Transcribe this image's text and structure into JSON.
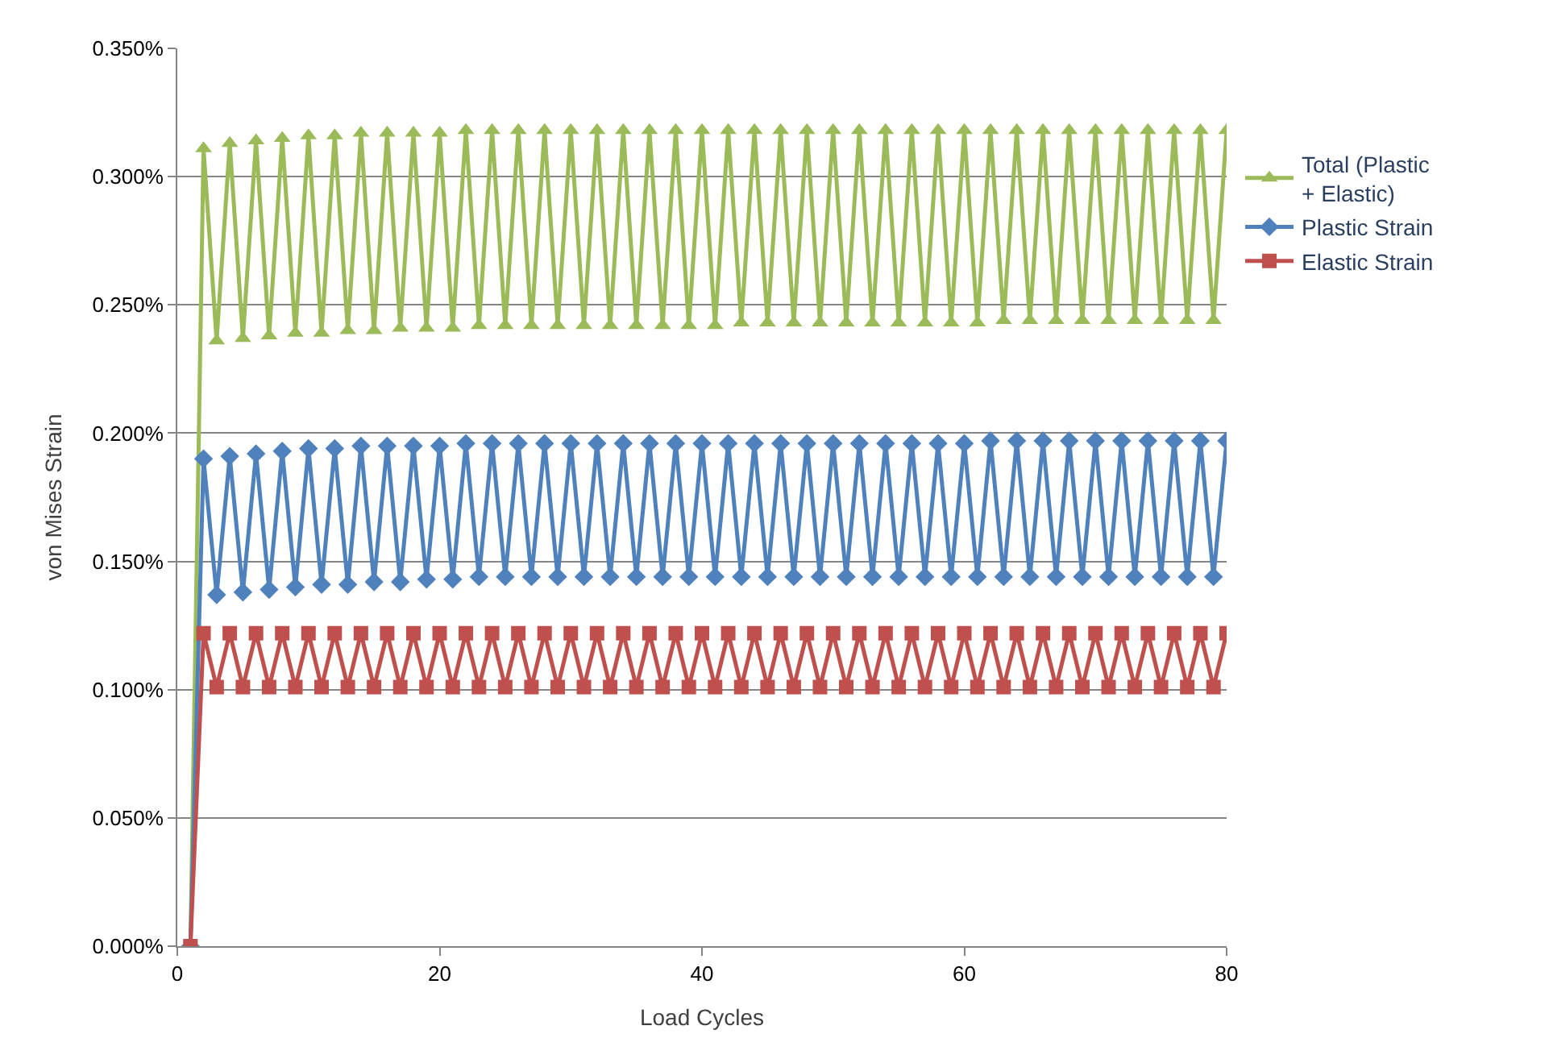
{
  "chart_data": {
    "type": "line",
    "xlabel": "Load Cycles",
    "ylabel": "von Mises Strain",
    "x": [
      1,
      2,
      3,
      4,
      5,
      6,
      7,
      8,
      9,
      10,
      11,
      12,
      13,
      14,
      15,
      16,
      17,
      18,
      19,
      20,
      21,
      22,
      23,
      24,
      25,
      26,
      27,
      28,
      29,
      30,
      31,
      32,
      33,
      34,
      35,
      36,
      37,
      38,
      39,
      40,
      41,
      42,
      43,
      44,
      45,
      46,
      47,
      48,
      49,
      50,
      51,
      52,
      53,
      54,
      55,
      56,
      57,
      58,
      59,
      60,
      61,
      62,
      63,
      64,
      65,
      66,
      67,
      68,
      69,
      70,
      71,
      72,
      73,
      74,
      75,
      76,
      77,
      78,
      79,
      80
    ],
    "series": [
      {
        "name": "Total (Plastic + Elastic)",
        "color": "#9bbb59",
        "marker": "triangle",
        "values": [
          0,
          0.311,
          0.236,
          0.313,
          0.237,
          0.314,
          0.238,
          0.315,
          0.239,
          0.316,
          0.239,
          0.316,
          0.24,
          0.317,
          0.24,
          0.317,
          0.241,
          0.317,
          0.241,
          0.317,
          0.241,
          0.318,
          0.242,
          0.318,
          0.242,
          0.318,
          0.242,
          0.318,
          0.242,
          0.318,
          0.242,
          0.318,
          0.242,
          0.318,
          0.242,
          0.318,
          0.242,
          0.318,
          0.242,
          0.318,
          0.242,
          0.318,
          0.243,
          0.318,
          0.243,
          0.318,
          0.243,
          0.318,
          0.243,
          0.318,
          0.243,
          0.318,
          0.243,
          0.318,
          0.243,
          0.318,
          0.243,
          0.318,
          0.243,
          0.318,
          0.243,
          0.318,
          0.244,
          0.318,
          0.244,
          0.318,
          0.244,
          0.318,
          0.244,
          0.318,
          0.244,
          0.318,
          0.244,
          0.318,
          0.244,
          0.318,
          0.244,
          0.318,
          0.244,
          0.318
        ]
      },
      {
        "name": "Plastic Strain",
        "color": "#4f81bd",
        "marker": "diamond",
        "values": [
          0,
          0.19,
          0.137,
          0.191,
          0.138,
          0.192,
          0.139,
          0.193,
          0.14,
          0.194,
          0.141,
          0.194,
          0.141,
          0.195,
          0.142,
          0.195,
          0.142,
          0.195,
          0.143,
          0.195,
          0.143,
          0.196,
          0.144,
          0.196,
          0.144,
          0.196,
          0.144,
          0.196,
          0.144,
          0.196,
          0.144,
          0.196,
          0.144,
          0.196,
          0.144,
          0.196,
          0.144,
          0.196,
          0.144,
          0.196,
          0.144,
          0.196,
          0.144,
          0.196,
          0.144,
          0.196,
          0.144,
          0.196,
          0.144,
          0.196,
          0.144,
          0.196,
          0.144,
          0.196,
          0.144,
          0.196,
          0.144,
          0.196,
          0.144,
          0.196,
          0.144,
          0.197,
          0.144,
          0.197,
          0.144,
          0.197,
          0.144,
          0.197,
          0.144,
          0.197,
          0.144,
          0.197,
          0.144,
          0.197,
          0.144,
          0.197,
          0.144,
          0.197,
          0.144,
          0.197
        ]
      },
      {
        "name": "Elastic Strain",
        "color": "#c0504d",
        "marker": "square",
        "values": [
          0,
          0.122,
          0.101,
          0.122,
          0.101,
          0.122,
          0.101,
          0.122,
          0.101,
          0.122,
          0.101,
          0.122,
          0.101,
          0.122,
          0.101,
          0.122,
          0.101,
          0.122,
          0.101,
          0.122,
          0.101,
          0.122,
          0.101,
          0.122,
          0.101,
          0.122,
          0.101,
          0.122,
          0.101,
          0.122,
          0.101,
          0.122,
          0.101,
          0.122,
          0.101,
          0.122,
          0.101,
          0.122,
          0.101,
          0.122,
          0.101,
          0.122,
          0.101,
          0.122,
          0.101,
          0.122,
          0.101,
          0.122,
          0.101,
          0.122,
          0.101,
          0.122,
          0.101,
          0.122,
          0.101,
          0.122,
          0.101,
          0.122,
          0.101,
          0.122,
          0.101,
          0.122,
          0.101,
          0.122,
          0.101,
          0.122,
          0.101,
          0.122,
          0.101,
          0.122,
          0.101,
          0.122,
          0.101,
          0.122,
          0.101,
          0.122,
          0.101,
          0.122,
          0.101,
          0.122
        ]
      }
    ],
    "xlim": [
      0,
      80
    ],
    "xticks": [
      0,
      20,
      40,
      60,
      80
    ],
    "ylim": [
      0,
      0.35
    ],
    "yticks": [
      {
        "value": 0,
        "label": "0.000%"
      },
      {
        "value": 0.05,
        "label": "0.050%"
      },
      {
        "value": 0.1,
        "label": "0.100%"
      },
      {
        "value": 0.15,
        "label": "0.150%"
      },
      {
        "value": 0.2,
        "label": "0.200%"
      },
      {
        "value": 0.25,
        "label": "0.250%"
      },
      {
        "value": 0.3,
        "label": "0.300%"
      },
      {
        "value": 0.35,
        "label": "0.350%"
      }
    ],
    "grid": "y",
    "legend": "right",
    "line_style": "solid"
  }
}
